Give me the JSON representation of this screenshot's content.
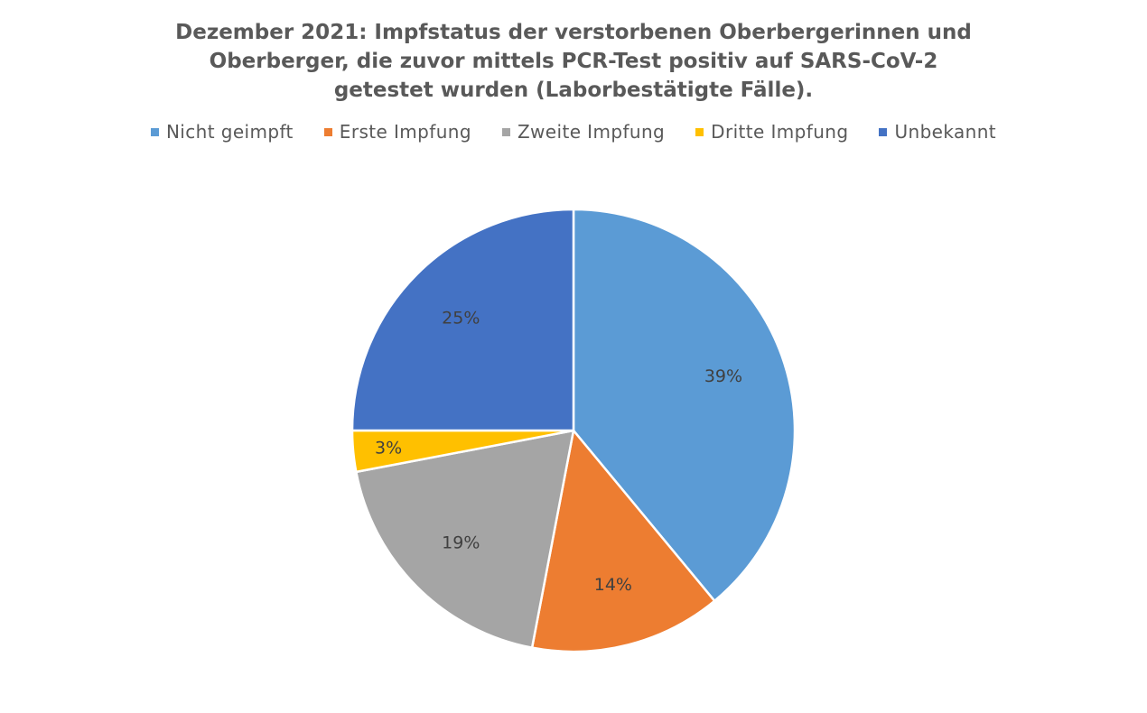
{
  "chart_data": {
    "type": "pie",
    "title_lines": [
      "Dezember 2021: Impfstatus der verstorbenen Oberbergerinnen  und",
      "Oberberger, die zuvor mittels PCR-Test positiv auf SARS-CoV-2",
      "getestet wurden  (Laborbestätigte Fälle)."
    ],
    "categories": [
      "Nicht geimpft",
      "Erste Impfung",
      "Zweite Impfung",
      "Dritte Impfung",
      "Unbekannt"
    ],
    "values": [
      39,
      14,
      19,
      3,
      25
    ],
    "data_labels": [
      "39%",
      "14%",
      "19%",
      "3%",
      "25%"
    ],
    "unit": "%",
    "colors": [
      "#5B9BD5",
      "#ED7D31",
      "#A5A5A5",
      "#FFC000",
      "#4472C4"
    ],
    "legend_position": "top",
    "start_angle_deg": 0,
    "direction": "clockwise"
  }
}
